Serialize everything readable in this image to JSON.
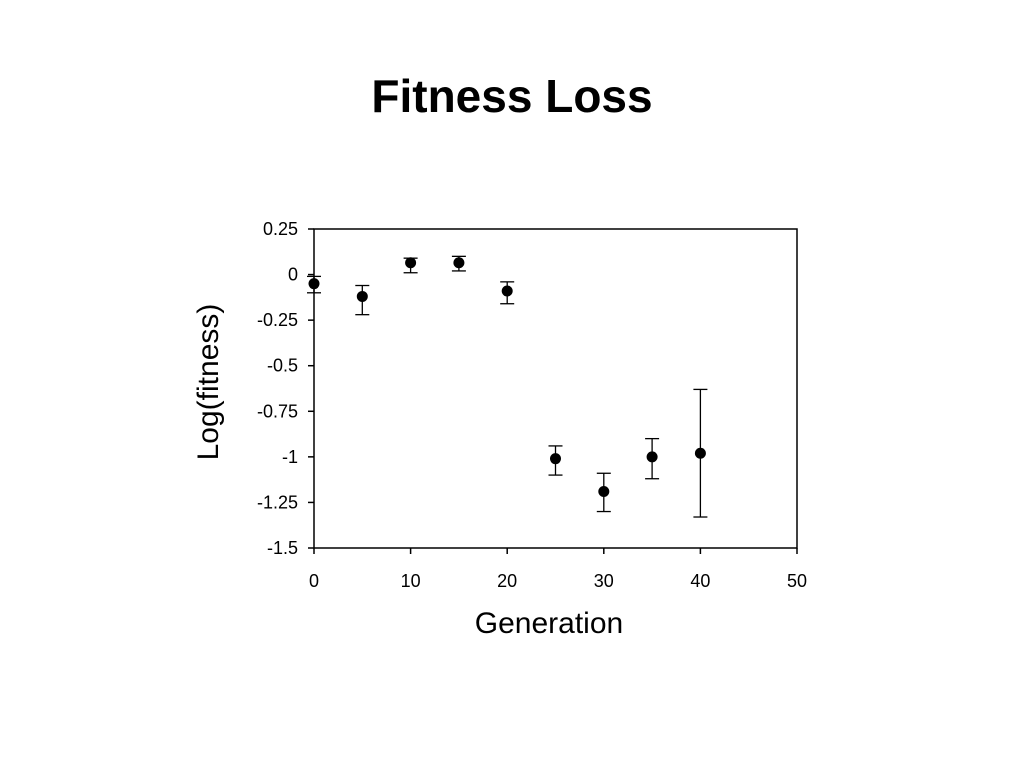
{
  "title": "Fitness Loss",
  "chart_data": {
    "type": "scatter",
    "title": "Fitness Loss",
    "xlabel": "Generation",
    "ylabel": "Log(fitness)",
    "xlim": [
      0,
      50
    ],
    "ylim": [
      -1.5,
      0.25
    ],
    "x_ticks": [
      0,
      10,
      20,
      30,
      40,
      50
    ],
    "y_ticks": [
      0.25,
      0,
      -0.25,
      -0.5,
      -0.75,
      -1,
      -1.25,
      -1.5
    ],
    "x_tick_labels": [
      "0",
      "10",
      "20",
      "30",
      "40",
      "50"
    ],
    "y_tick_labels": [
      "0.25",
      "0",
      "-0.25",
      "-0.5",
      "-0.75",
      "-1",
      "-1.25",
      "-1.5"
    ],
    "grid": false,
    "legend": "none",
    "marker_color": "#000000",
    "series": [
      {
        "x": [
          0,
          5,
          10,
          15,
          20,
          25,
          30,
          35,
          40
        ],
        "y": [
          -0.05,
          -0.12,
          0.065,
          0.065,
          -0.09,
          -1.01,
          -1.19,
          -1.0,
          -0.98
        ],
        "error_low": [
          -0.1,
          -0.22,
          0.01,
          0.02,
          -0.16,
          -1.1,
          -1.3,
          -1.12,
          -1.33
        ],
        "error_high": [
          -0.01,
          -0.06,
          0.09,
          0.1,
          -0.04,
          -0.94,
          -1.09,
          -0.9,
          -0.63
        ]
      }
    ]
  }
}
